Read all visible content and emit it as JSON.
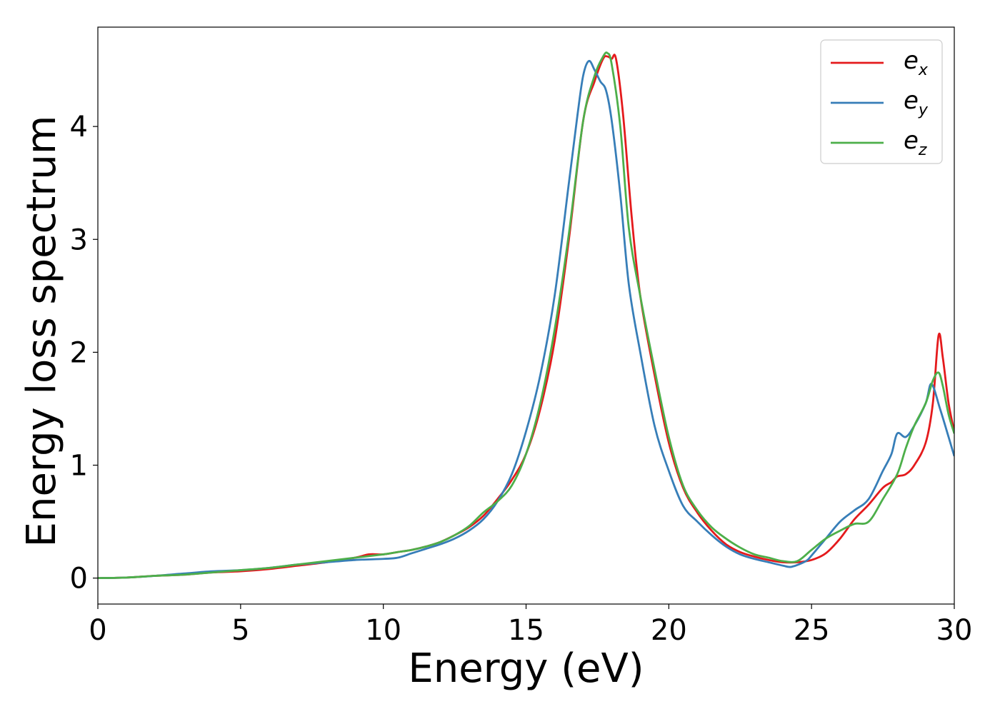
{
  "chart_data": {
    "type": "line",
    "title": "",
    "xlabel": "Energy (eV)",
    "ylabel": "Energy loss spectrum",
    "xlim": [
      0,
      30
    ],
    "ylim": [
      -0.23,
      4.88
    ],
    "xticks": [
      0,
      5,
      10,
      15,
      20,
      25,
      30
    ],
    "yticks": [
      0,
      1,
      2,
      3,
      4
    ],
    "grid": false,
    "legend_position": "top-right",
    "series": [
      {
        "name": "e_x",
        "label_base": "e",
        "label_sub": "x",
        "color": "#e41a1c",
        "x": [
          0,
          1,
          2,
          3,
          4,
          5,
          6,
          7,
          8,
          9,
          9.5,
          10,
          10.5,
          11,
          11.5,
          12,
          12.5,
          13,
          13.5,
          14,
          14.5,
          15,
          15.5,
          16,
          16.5,
          17,
          17.4,
          17.7,
          17.85,
          18,
          18.15,
          18.4,
          18.7,
          19,
          19.5,
          20,
          20.5,
          21,
          21.5,
          22,
          22.5,
          23,
          23.5,
          24,
          24.5,
          25,
          25.5,
          26,
          26.5,
          27,
          27.5,
          27.8,
          28,
          28.3,
          28.6,
          29,
          29.25,
          29.45,
          29.6,
          29.8,
          30
        ],
        "y": [
          0,
          0.005,
          0.02,
          0.03,
          0.05,
          0.06,
          0.08,
          0.11,
          0.14,
          0.18,
          0.21,
          0.21,
          0.23,
          0.25,
          0.28,
          0.32,
          0.38,
          0.45,
          0.55,
          0.7,
          0.87,
          1.1,
          1.5,
          2.1,
          3.0,
          4.05,
          4.4,
          4.6,
          4.62,
          4.6,
          4.6,
          4.1,
          3.2,
          2.5,
          1.8,
          1.2,
          0.8,
          0.58,
          0.42,
          0.3,
          0.23,
          0.19,
          0.16,
          0.14,
          0.14,
          0.16,
          0.22,
          0.35,
          0.52,
          0.65,
          0.8,
          0.85,
          0.9,
          0.92,
          1.0,
          1.2,
          1.55,
          2.15,
          1.95,
          1.55,
          1.3
        ]
      },
      {
        "name": "e_y",
        "label_base": "e",
        "label_sub": "y",
        "color": "#377eb8",
        "x": [
          0,
          1,
          2,
          3,
          4,
          5,
          6,
          7,
          8,
          9,
          10,
          10.5,
          11,
          11.5,
          12,
          12.5,
          13,
          13.5,
          14,
          14.5,
          15,
          15.5,
          16,
          16.5,
          16.8,
          17.0,
          17.2,
          17.4,
          17.6,
          17.8,
          18,
          18.3,
          18.6,
          19,
          19.5,
          20,
          20.5,
          21,
          21.5,
          22,
          22.5,
          23,
          23.5,
          24,
          24.3,
          24.8,
          25,
          25.5,
          26,
          26.5,
          27,
          27.5,
          27.8,
          28,
          28.3,
          28.6,
          29,
          29.2,
          29.5,
          29.8,
          30
        ],
        "y": [
          0,
          0.005,
          0.02,
          0.04,
          0.06,
          0.07,
          0.09,
          0.12,
          0.14,
          0.16,
          0.17,
          0.18,
          0.22,
          0.26,
          0.3,
          0.35,
          0.42,
          0.52,
          0.68,
          0.92,
          1.3,
          1.8,
          2.5,
          3.5,
          4.1,
          4.45,
          4.58,
          4.5,
          4.4,
          4.32,
          4.05,
          3.4,
          2.6,
          2.0,
          1.35,
          0.95,
          0.64,
          0.5,
          0.38,
          0.28,
          0.21,
          0.17,
          0.14,
          0.11,
          0.1,
          0.15,
          0.2,
          0.35,
          0.5,
          0.6,
          0.7,
          0.95,
          1.1,
          1.28,
          1.25,
          1.35,
          1.55,
          1.72,
          1.5,
          1.25,
          1.08
        ]
      },
      {
        "name": "e_z",
        "label_base": "e",
        "label_sub": "z",
        "color": "#4daf4a",
        "x": [
          0,
          1,
          2,
          3,
          4,
          5,
          6,
          7,
          8,
          9,
          10,
          10.5,
          11,
          11.5,
          12,
          12.5,
          13,
          13.5,
          14,
          14.5,
          15,
          15.5,
          16,
          16.5,
          17,
          17.4,
          17.7,
          17.85,
          18,
          18.3,
          18.6,
          19,
          19.5,
          20,
          20.5,
          21,
          21.5,
          22,
          22.5,
          23,
          23.5,
          24,
          24.5,
          25,
          25.5,
          26,
          26.5,
          27,
          27.5,
          28,
          28.3,
          28.6,
          29,
          29.25,
          29.45,
          29.6,
          29.8,
          30
        ],
        "y": [
          0,
          0.005,
          0.02,
          0.03,
          0.05,
          0.07,
          0.09,
          0.12,
          0.15,
          0.18,
          0.21,
          0.23,
          0.25,
          0.28,
          0.32,
          0.38,
          0.46,
          0.58,
          0.68,
          0.82,
          1.1,
          1.55,
          2.2,
          3.05,
          4.05,
          4.45,
          4.62,
          4.65,
          4.55,
          4.0,
          3.1,
          2.5,
          1.85,
          1.25,
          0.82,
          0.6,
          0.45,
          0.35,
          0.27,
          0.21,
          0.18,
          0.15,
          0.15,
          0.25,
          0.35,
          0.42,
          0.48,
          0.5,
          0.7,
          0.92,
          1.15,
          1.35,
          1.55,
          1.75,
          1.82,
          1.7,
          1.45,
          1.28
        ]
      }
    ]
  }
}
